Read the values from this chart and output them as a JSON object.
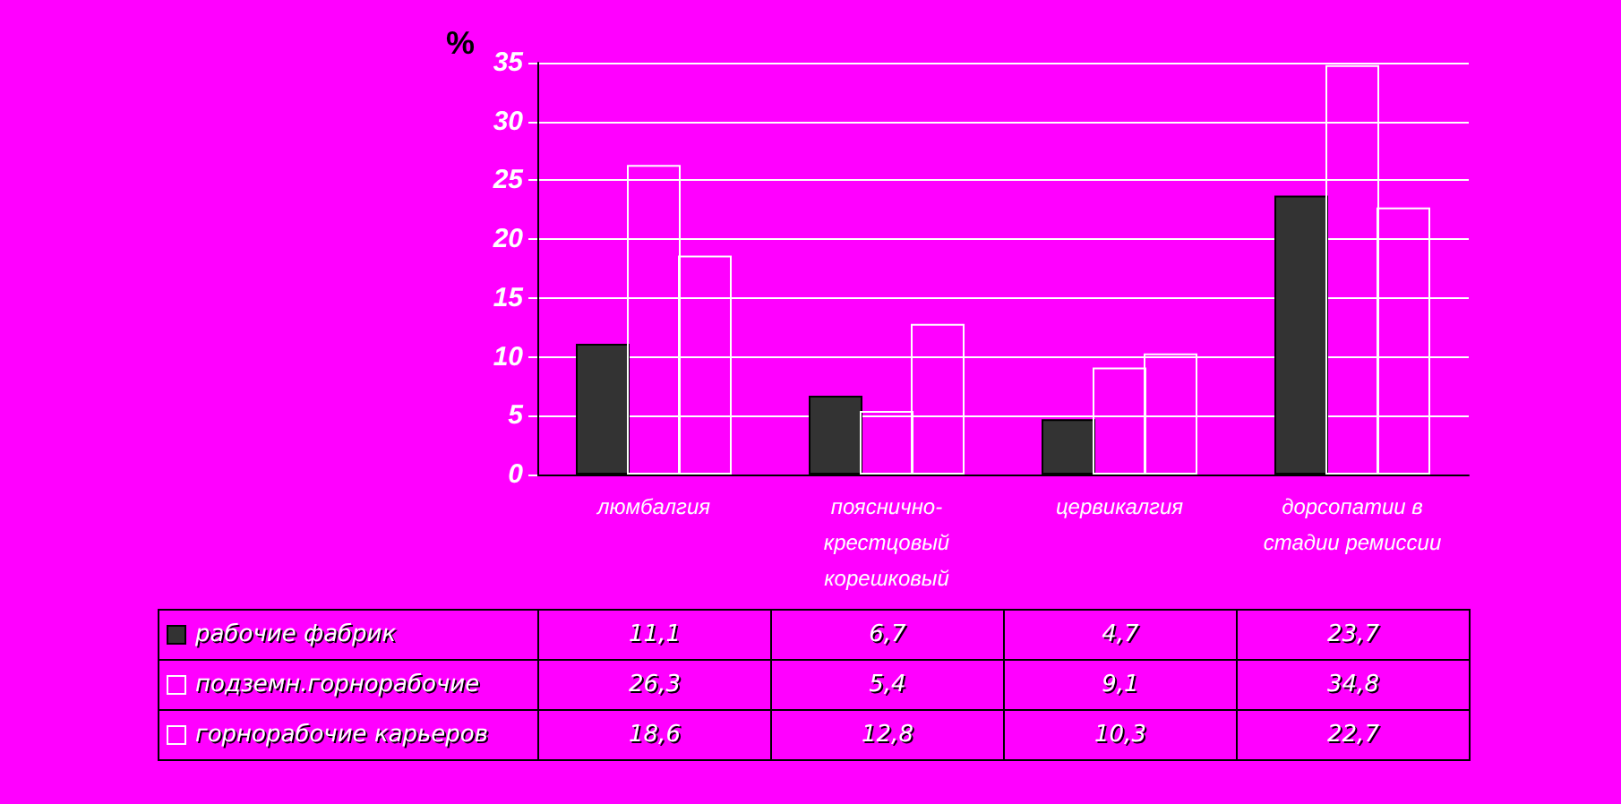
{
  "chart_data": {
    "type": "bar",
    "ylabel": "%",
    "categories": [
      "люмбалгия",
      "пояснично-крестцовый корешковый",
      "цервикалгия",
      "дорсопатии в стадии ремиссии"
    ],
    "series": [
      {
        "name": "рабочие фабрик",
        "color": "#333333",
        "values": [
          11.1,
          6.7,
          4.7,
          23.7
        ],
        "value_labels": [
          "11,1",
          "6,7",
          "4,7",
          "23,7"
        ]
      },
      {
        "name": "подземн.горнорабочие",
        "color": "#ffffff",
        "values": [
          26.3,
          5.4,
          9.1,
          34.8
        ],
        "value_labels": [
          "26,3",
          "5,4",
          "9,1",
          "34,8"
        ]
      },
      {
        "name": "горнорабочие карьеров",
        "color": "#ffffff",
        "values": [
          18.6,
          12.8,
          10.3,
          22.7
        ],
        "value_labels": [
          "18,6",
          "12,8",
          "10,3",
          "22,7"
        ]
      }
    ],
    "ylim": [
      0,
      35
    ],
    "yticks": [
      0,
      5,
      10,
      15,
      20,
      25,
      30,
      35
    ],
    "grid": "y",
    "legend": "bottom"
  }
}
